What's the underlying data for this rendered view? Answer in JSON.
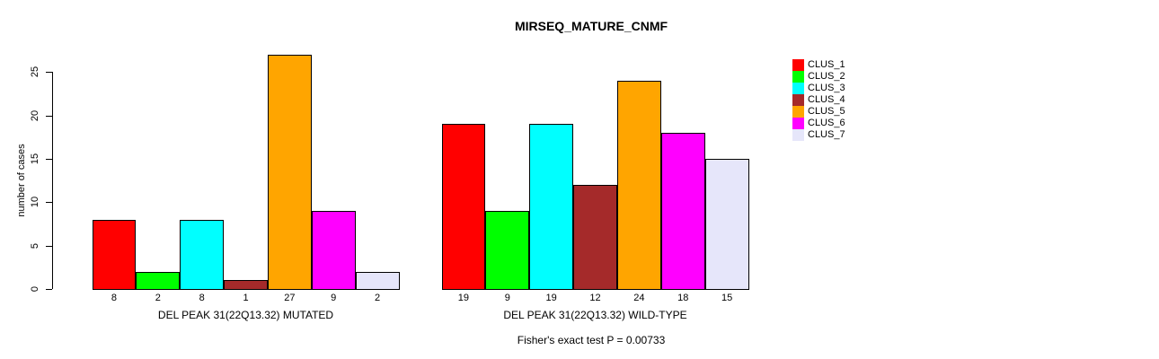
{
  "chart_data": {
    "type": "bar",
    "title": "MIRSEQ_MATURE_CNMF",
    "ylabel": "number of cases",
    "xlabel": "",
    "categories": [
      "DEL PEAK 31(22Q13.32) MUTATED",
      "DEL PEAK 31(22Q13.32) WILD-TYPE"
    ],
    "series": [
      {
        "name": "CLUS_1",
        "color": "#FF0000",
        "values": [
          8,
          19
        ]
      },
      {
        "name": "CLUS_2",
        "color": "#00FF00",
        "values": [
          2,
          9
        ]
      },
      {
        "name": "CLUS_3",
        "color": "#00FFFF",
        "values": [
          8,
          19
        ]
      },
      {
        "name": "CLUS_4",
        "color": "#A52A2A",
        "values": [
          1,
          12
        ]
      },
      {
        "name": "CLUS_5",
        "color": "#FFA500",
        "values": [
          27,
          24
        ]
      },
      {
        "name": "CLUS_6",
        "color": "#FF00FF",
        "values": [
          9,
          18
        ]
      },
      {
        "name": "CLUS_7",
        "color": "#E6E6FA",
        "values": [
          2,
          15
        ]
      }
    ],
    "yticks": [
      0,
      5,
      10,
      15,
      20,
      25
    ],
    "ylim": [
      0,
      27
    ],
    "bar_value_labels": true,
    "grid": false,
    "legend_position": "right",
    "footnote": "Fisher's exact test P = 0.00733"
  }
}
